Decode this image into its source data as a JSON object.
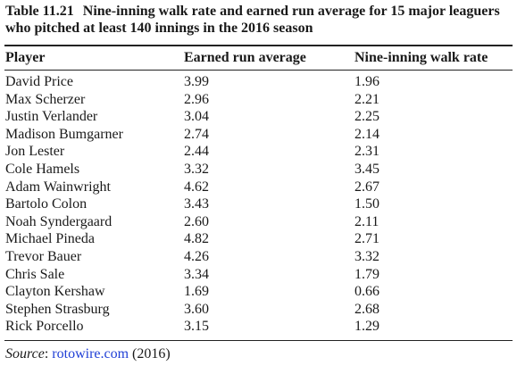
{
  "caption": {
    "number": "Table 11.21",
    "title": "Nine-inning walk rate and earned run average for 15 major leaguers who pitched at least 140 innings in the 2016 season"
  },
  "table": {
    "headers": [
      "Player",
      "Earned run average",
      "Nine-inning walk rate"
    ],
    "rows": [
      [
        "David Price",
        "3.99",
        "1.96"
      ],
      [
        "Max Scherzer",
        "2.96",
        "2.21"
      ],
      [
        "Justin Verlander",
        "3.04",
        "2.25"
      ],
      [
        "Madison Bumgarner",
        "2.74",
        "2.14"
      ],
      [
        "Jon Lester",
        "2.44",
        "2.31"
      ],
      [
        "Cole Hamels",
        "3.32",
        "3.45"
      ],
      [
        "Adam Wainwright",
        "4.62",
        "2.67"
      ],
      [
        "Bartolo Colon",
        "3.43",
        "1.50"
      ],
      [
        "Noah Syndergaard",
        "2.60",
        "2.11"
      ],
      [
        "Michael Pineda",
        "4.82",
        "2.71"
      ],
      [
        "Trevor Bauer",
        "4.26",
        "3.32"
      ],
      [
        "Chris Sale",
        "3.34",
        "1.79"
      ],
      [
        "Clayton Kershaw",
        "1.69",
        "0.66"
      ],
      [
        "Stephen Strasburg",
        "3.60",
        "2.68"
      ],
      [
        "Rick Porcello",
        "3.15",
        "1.29"
      ]
    ]
  },
  "source": {
    "label": "Source",
    "link_text": "rotowire.com",
    "year": "(2016)"
  },
  "colors": {
    "link": "#1f3fd6",
    "text": "#1a1a1a"
  }
}
